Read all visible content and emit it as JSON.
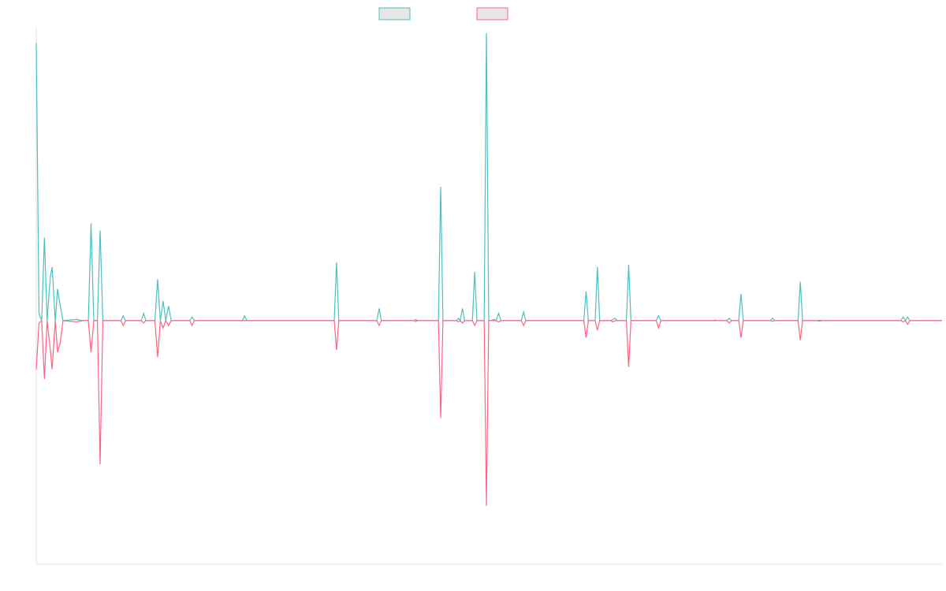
{
  "chart_data": {
    "type": "line",
    "title": "",
    "xlabel": "",
    "ylabel": "",
    "grid": false,
    "legend": {
      "position": "top-center"
    },
    "ylim": [
      -1,
      1.2
    ],
    "series": [
      {
        "color": "#4bc0c0",
        "points": [
          [
            0,
            1.14
          ],
          [
            0.6,
            0.03
          ],
          [
            1.2,
            0
          ],
          [
            1.8,
            0.34
          ],
          [
            2.4,
            0
          ],
          [
            3.1,
            0.18
          ],
          [
            3.5,
            0.22
          ],
          [
            4.2,
            0
          ],
          [
            4.7,
            0.13
          ],
          [
            5.3,
            0.06
          ],
          [
            5.9,
            0
          ],
          [
            8.8,
            0.005
          ],
          [
            10.3,
            0
          ],
          [
            11.5,
            0
          ],
          [
            12.1,
            0.4
          ],
          [
            12.7,
            0
          ],
          [
            13.5,
            0
          ],
          [
            14.1,
            0.37
          ],
          [
            14.7,
            0
          ],
          [
            18.7,
            0
          ],
          [
            19.2,
            0.02
          ],
          [
            19.7,
            0
          ],
          [
            23.2,
            0
          ],
          [
            23.7,
            0.03
          ],
          [
            24.2,
            0
          ],
          [
            26.2,
            0
          ],
          [
            26.8,
            0.17
          ],
          [
            27.4,
            0
          ],
          [
            28,
            0.08
          ],
          [
            28.6,
            0
          ],
          [
            29.2,
            0.06
          ],
          [
            29.8,
            0
          ],
          [
            33.9,
            0
          ],
          [
            34.4,
            0.015
          ],
          [
            34.9,
            0
          ],
          [
            45.5,
            0
          ],
          [
            46,
            0.02
          ],
          [
            46.5,
            0
          ],
          [
            65.8,
            0
          ],
          [
            66.3,
            0.24
          ],
          [
            66.8,
            0
          ],
          [
            75.2,
            0
          ],
          [
            75.7,
            0.05
          ],
          [
            76.2,
            0
          ],
          [
            83.4,
            0
          ],
          [
            83.8,
            0.005
          ],
          [
            84.2,
            0
          ],
          [
            88.8,
            0
          ],
          [
            89.3,
            0.55
          ],
          [
            89.8,
            0
          ],
          [
            92.8,
            0
          ],
          [
            93.2,
            0.01
          ],
          [
            93.6,
            0
          ],
          [
            94.1,
            0.05
          ],
          [
            94.6,
            0
          ],
          [
            96.3,
            0
          ],
          [
            96.8,
            0.2
          ],
          [
            97.3,
            0
          ],
          [
            98.9,
            0
          ],
          [
            99.4,
            1.18
          ],
          [
            99.9,
            0
          ],
          [
            100.5,
            0
          ],
          [
            101,
            0.005
          ],
          [
            101.5,
            0
          ],
          [
            102.1,
            0.03
          ],
          [
            102.6,
            0
          ],
          [
            107.1,
            0
          ],
          [
            107.6,
            0.035
          ],
          [
            108.1,
            0
          ],
          [
            120.9,
            0
          ],
          [
            121.4,
            0.12
          ],
          [
            121.9,
            0
          ],
          [
            123.4,
            0
          ],
          [
            123.9,
            0.22
          ],
          [
            124.4,
            0
          ],
          [
            126.8,
            0
          ],
          [
            127.3,
            0.005
          ],
          [
            127.8,
            0.01
          ],
          [
            128.3,
            0
          ],
          [
            130.3,
            0
          ],
          [
            130.8,
            0.23
          ],
          [
            131.3,
            0
          ],
          [
            136.9,
            0
          ],
          [
            137.4,
            0.02
          ],
          [
            137.9,
            0
          ],
          [
            149.4,
            0
          ],
          [
            149.9,
            0.003
          ],
          [
            150.4,
            0
          ],
          [
            152.5,
            0
          ],
          [
            153,
            0.01
          ],
          [
            153.5,
            0
          ],
          [
            155.1,
            0
          ],
          [
            155.6,
            0.11
          ],
          [
            156.1,
            0
          ],
          [
            162.1,
            0
          ],
          [
            162.6,
            0.01
          ],
          [
            163.1,
            0
          ],
          [
            168.2,
            0
          ],
          [
            168.7,
            0.16
          ],
          [
            169.2,
            0
          ],
          [
            172.4,
            0
          ],
          [
            172.9,
            0.002
          ],
          [
            173.4,
            0
          ],
          [
            190.9,
            0
          ],
          [
            191.4,
            0.015
          ],
          [
            191.9,
            0
          ],
          [
            192.4,
            0.015
          ],
          [
            192.9,
            0
          ],
          [
            200,
            0
          ]
        ]
      },
      {
        "color": "#ff6384",
        "points": [
          [
            0,
            -0.2
          ],
          [
            0.6,
            -0.01
          ],
          [
            1.2,
            0
          ],
          [
            1.8,
            -0.24
          ],
          [
            2.4,
            0
          ],
          [
            3.1,
            -0.12
          ],
          [
            3.5,
            -0.2
          ],
          [
            4.2,
            0
          ],
          [
            4.7,
            -0.13
          ],
          [
            5.3,
            -0.09
          ],
          [
            5.9,
            0
          ],
          [
            8.8,
            -0.005
          ],
          [
            10.3,
            0
          ],
          [
            11.5,
            0
          ],
          [
            12.1,
            -0.13
          ],
          [
            12.7,
            0
          ],
          [
            13.5,
            0
          ],
          [
            14.1,
            -0.59
          ],
          [
            14.7,
            0
          ],
          [
            18.7,
            0
          ],
          [
            19.2,
            -0.02
          ],
          [
            19.7,
            0
          ],
          [
            23.2,
            0
          ],
          [
            23.7,
            -0.01
          ],
          [
            24.2,
            0
          ],
          [
            26.2,
            0
          ],
          [
            26.8,
            -0.15
          ],
          [
            27.4,
            0
          ],
          [
            28,
            -0.03
          ],
          [
            28.6,
            0
          ],
          [
            29.2,
            -0.02
          ],
          [
            29.8,
            0
          ],
          [
            33.9,
            0
          ],
          [
            34.4,
            -0.02
          ],
          [
            34.9,
            0
          ],
          [
            45.5,
            0
          ],
          [
            46,
            0
          ],
          [
            46.5,
            0
          ],
          [
            65.8,
            0
          ],
          [
            66.3,
            -0.12
          ],
          [
            66.8,
            0
          ],
          [
            75.2,
            0
          ],
          [
            75.7,
            -0.02
          ],
          [
            76.2,
            0
          ],
          [
            83.4,
            0
          ],
          [
            83.8,
            -0.003
          ],
          [
            84.2,
            0
          ],
          [
            88.8,
            0
          ],
          [
            89.3,
            -0.4
          ],
          [
            89.8,
            0
          ],
          [
            92.8,
            0
          ],
          [
            93.2,
            -0.005
          ],
          [
            93.6,
            0
          ],
          [
            94.1,
            -0.01
          ],
          [
            94.6,
            0
          ],
          [
            96.3,
            0
          ],
          [
            96.8,
            -0.02
          ],
          [
            97.3,
            0
          ],
          [
            98.9,
            0
          ],
          [
            99.4,
            -0.76
          ],
          [
            99.9,
            0
          ],
          [
            100.5,
            0
          ],
          [
            101,
            0
          ],
          [
            101.5,
            0
          ],
          [
            102.1,
            -0.005
          ],
          [
            102.6,
            0
          ],
          [
            107.1,
            0
          ],
          [
            107.6,
            -0.02
          ],
          [
            108.1,
            0
          ],
          [
            120.9,
            0
          ],
          [
            121.4,
            -0.07
          ],
          [
            121.9,
            0
          ],
          [
            123.4,
            0
          ],
          [
            123.9,
            -0.04
          ],
          [
            124.4,
            0
          ],
          [
            126.8,
            0
          ],
          [
            127.3,
            -0.005
          ],
          [
            127.8,
            0
          ],
          [
            128.3,
            0
          ],
          [
            130.3,
            0
          ],
          [
            130.8,
            -0.19
          ],
          [
            131.3,
            0
          ],
          [
            136.9,
            0
          ],
          [
            137.4,
            -0.03
          ],
          [
            137.9,
            0
          ],
          [
            149.4,
            0
          ],
          [
            149.9,
            0
          ],
          [
            150.4,
            0
          ],
          [
            152.5,
            0
          ],
          [
            153,
            -0.01
          ],
          [
            153.5,
            0
          ],
          [
            155.1,
            0
          ],
          [
            155.6,
            -0.07
          ],
          [
            156.1,
            0
          ],
          [
            162.1,
            0
          ],
          [
            162.6,
            -0.002
          ],
          [
            163.1,
            0
          ],
          [
            168.2,
            0
          ],
          [
            168.7,
            -0.08
          ],
          [
            169.2,
            0
          ],
          [
            172.4,
            0
          ],
          [
            172.9,
            -0.002
          ],
          [
            173.4,
            0
          ],
          [
            190.9,
            0
          ],
          [
            191.4,
            -0.005
          ],
          [
            191.9,
            0
          ],
          [
            192.4,
            -0.015
          ],
          [
            192.9,
            0
          ],
          [
            200,
            0
          ]
        ]
      }
    ]
  }
}
